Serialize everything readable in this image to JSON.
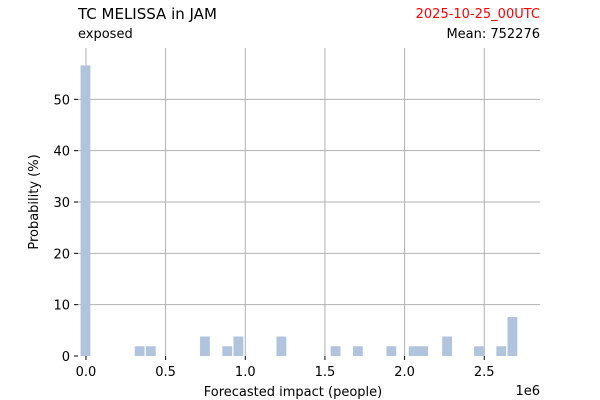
{
  "header": {
    "title": "TC MELISSA in JAM",
    "subtitle": "exposed",
    "date": "2025-10-25_00UTC",
    "mean": "Mean: 752276"
  },
  "colors": {
    "bar": "#b0c4de",
    "grid": "#b0b0b0",
    "date": "#ff0000"
  },
  "chart_data": {
    "type": "bar",
    "xlabel": "Forecasted impact (people)",
    "ylabel": "Probability (%)",
    "x_scale_label": "1e6",
    "xlim": [
      -0.05,
      2.85
    ],
    "ylim": [
      0,
      60
    ],
    "x_ticks": [
      0.0,
      0.5,
      1.0,
      1.5,
      2.0,
      2.5
    ],
    "x_tick_labels": [
      "0.0",
      "0.5",
      "1.0",
      "1.5",
      "2.0",
      "2.5"
    ],
    "y_ticks": [
      0,
      10,
      20,
      30,
      40,
      50
    ],
    "y_tick_labels": [
      "0",
      "10",
      "20",
      "30",
      "40",
      "50"
    ],
    "grid": true,
    "bin_width": 0.068,
    "bins": [
      {
        "x": 0.0,
        "y": 56.6
      },
      {
        "x": 0.34,
        "y": 1.9
      },
      {
        "x": 0.41,
        "y": 1.9
      },
      {
        "x": 0.75,
        "y": 3.8
      },
      {
        "x": 0.89,
        "y": 1.9
      },
      {
        "x": 0.96,
        "y": 3.8
      },
      {
        "x": 1.23,
        "y": 3.8
      },
      {
        "x": 1.57,
        "y": 1.9
      },
      {
        "x": 1.71,
        "y": 1.9
      },
      {
        "x": 1.92,
        "y": 1.9
      },
      {
        "x": 2.06,
        "y": 1.9
      },
      {
        "x": 2.12,
        "y": 1.9
      },
      {
        "x": 2.27,
        "y": 3.8
      },
      {
        "x": 2.47,
        "y": 1.9
      },
      {
        "x": 2.61,
        "y": 1.9
      },
      {
        "x": 2.68,
        "y": 7.6
      }
    ]
  }
}
